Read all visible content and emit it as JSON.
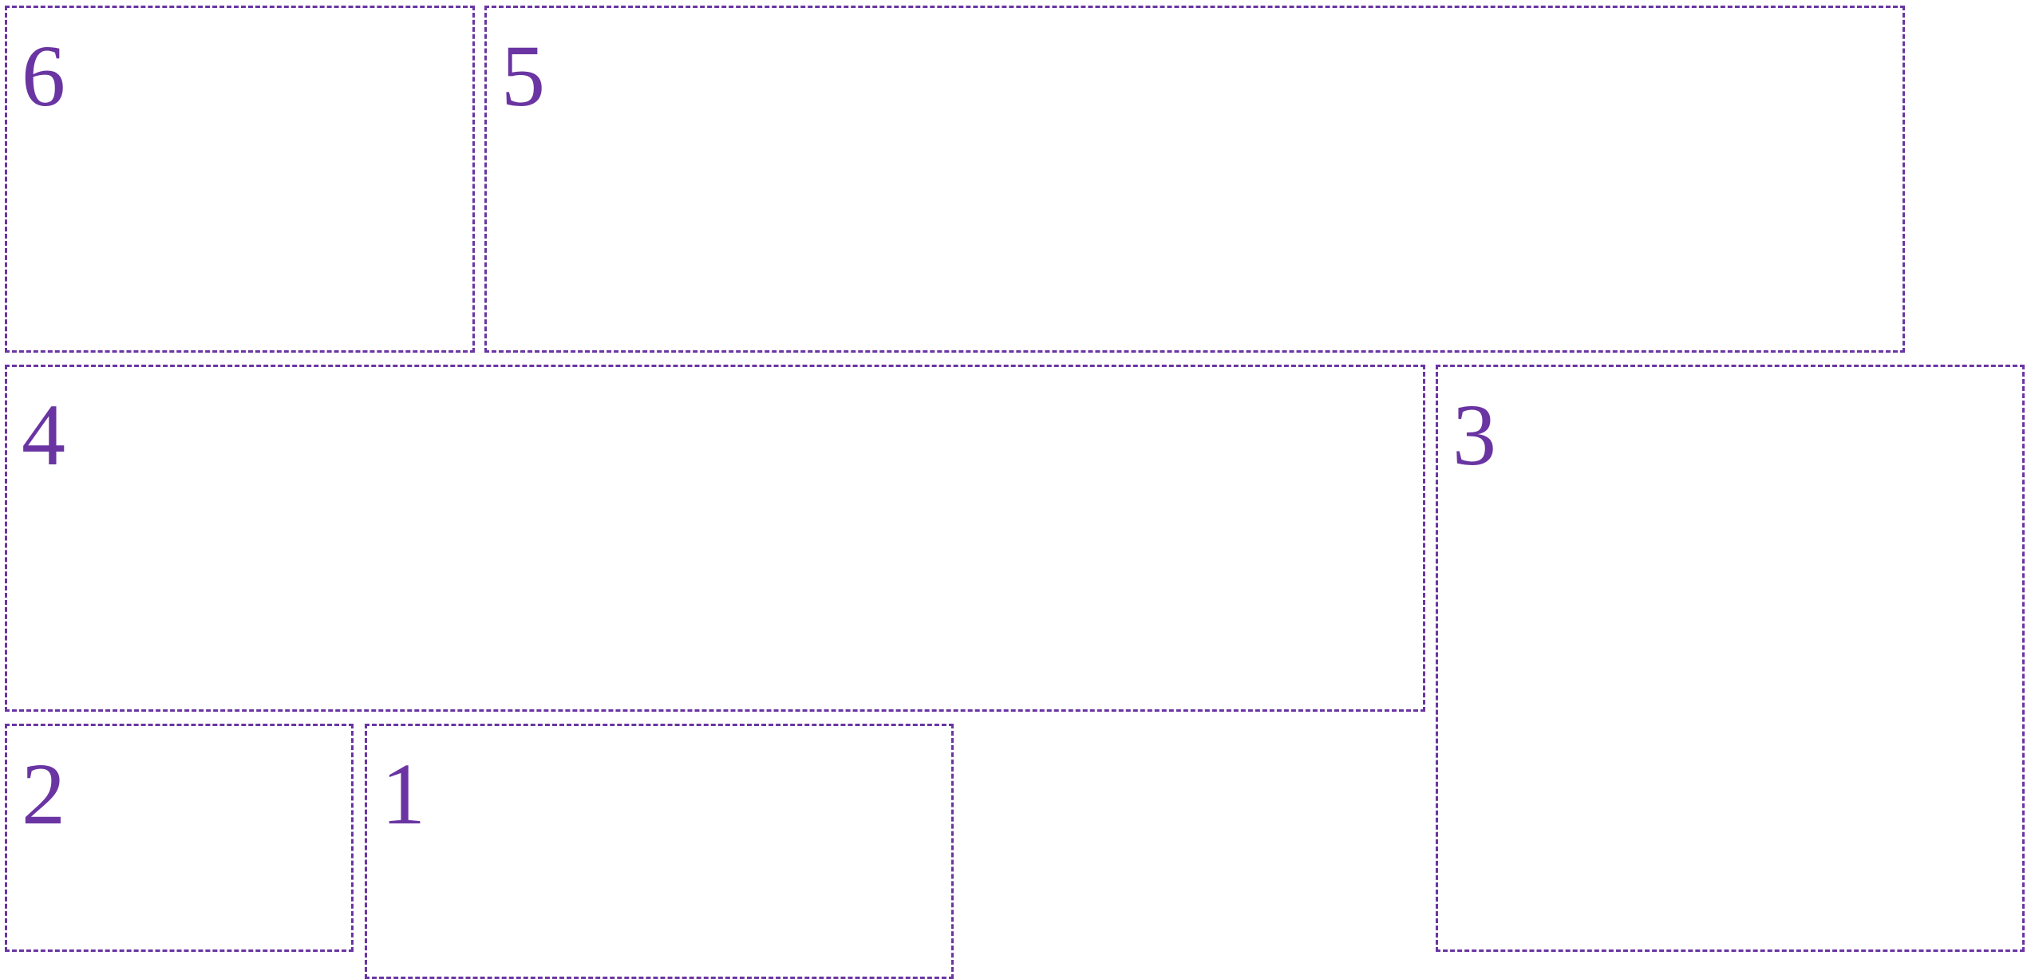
{
  "colors": {
    "accent": "#6a35a2",
    "background": "#ffffff"
  },
  "panels": [
    {
      "id": "p6",
      "label": "6"
    },
    {
      "id": "p5",
      "label": "5"
    },
    {
      "id": "p4",
      "label": "4"
    },
    {
      "id": "p3",
      "label": "3"
    },
    {
      "id": "p2",
      "label": "2"
    },
    {
      "id": "p1",
      "label": "1"
    }
  ]
}
